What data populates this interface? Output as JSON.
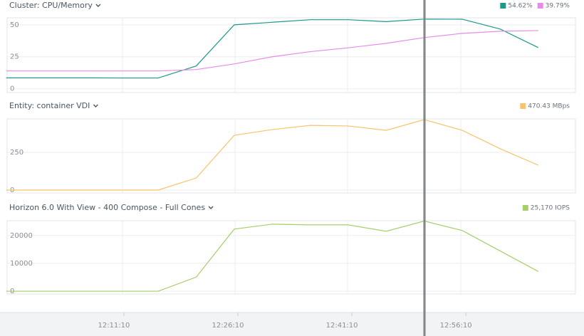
{
  "chart_data": [
    {
      "type": "line",
      "title": "Cluster: CPU/Memory",
      "x": [
        -3,
        2,
        7,
        12,
        17,
        22,
        27,
        32,
        37,
        42,
        47,
        52,
        57,
        62,
        67
      ],
      "xlim": [
        -2.6,
        71.9
      ],
      "series": [
        {
          "name": "54.62%",
          "color": "#1a9a8a",
          "values": [
            8.5,
            8.5,
            8.5,
            8.4,
            8.4,
            17.8,
            50,
            52,
            54,
            54,
            52.5,
            54.5,
            54.4,
            46.7,
            32.2
          ]
        },
        {
          "name": "39.79%",
          "color": "#e88be8",
          "values": [
            13.9,
            13.9,
            13.9,
            13.9,
            13.9,
            15,
            19.4,
            25,
            29,
            32,
            35.5,
            40,
            43.3,
            45,
            45.5
          ]
        }
      ],
      "ylim": [
        -3,
        55.5
      ],
      "yticks": [
        0,
        25,
        50
      ],
      "grid": true
    },
    {
      "type": "line",
      "title": "Entity: container VDI",
      "x": [
        -3,
        2,
        7,
        12,
        17,
        22,
        27,
        32,
        37,
        42,
        47,
        52,
        57,
        62,
        67
      ],
      "xlim": [
        -2.6,
        71.9
      ],
      "series": [
        {
          "name": "470.43 MBps",
          "color": "#f7c46c",
          "values": [
            0,
            0,
            0,
            0,
            0,
            80,
            363,
            401,
            429,
            425,
            396,
            467,
            396,
            274,
            165
          ]
        }
      ],
      "ylim": [
        -19,
        472
      ],
      "yticks": [
        0,
        250
      ],
      "grid": true
    },
    {
      "type": "line",
      "title": "Horizon 6.0 With View - 400 Compose - Full Cones",
      "x": [
        -3,
        2,
        7,
        12,
        17,
        22,
        27,
        32,
        37,
        42,
        47,
        52,
        57,
        62,
        67
      ],
      "xlim": [
        -2.6,
        71.9
      ],
      "xticks": [
        {
          "value": 11.17,
          "label": "12:11:10"
        },
        {
          "value": 26.17,
          "label": "12:26:10"
        },
        {
          "value": 41.17,
          "label": "12:41:10"
        },
        {
          "value": 56.17,
          "label": "12:56:10"
        }
      ],
      "series": [
        {
          "name": "25,170 IOPS",
          "color": "#a5cf6b",
          "values": [
            0,
            0,
            0,
            0,
            0,
            5060,
            22280,
            24050,
            23800,
            23800,
            21500,
            25170,
            21770,
            14430,
            7090
          ]
        }
      ],
      "ylim": [
        -1000,
        25300
      ],
      "yticks": [
        0,
        10000,
        20000
      ],
      "grid": true
    }
  ]
}
